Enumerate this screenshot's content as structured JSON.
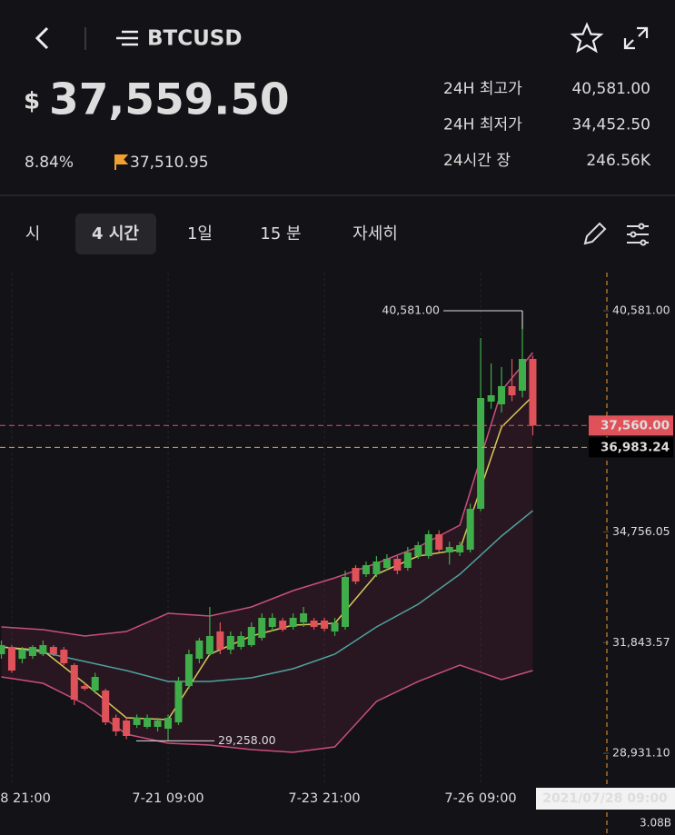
{
  "header": {
    "title": "BTCUSD",
    "price_symbol": "$",
    "price": "37,559.50",
    "change": "8.84%",
    "mark_price": "37,510.95"
  },
  "stats": [
    {
      "label": "24H 최고가",
      "value": "40,581.00"
    },
    {
      "label": "24H 최저가",
      "value": "34,452.50"
    },
    {
      "label": "24시간 장",
      "value": "246.56K"
    }
  ],
  "tabs": [
    "시",
    "4 시간",
    "1일",
    "15 분",
    "자세히"
  ],
  "active_tab": 1,
  "chart": {
    "type": "candlestick",
    "ylim": [
      28190,
      41586
    ],
    "yticks": [
      {
        "value": 40581,
        "label": "40,581.00"
      },
      {
        "value": 34756.05,
        "label": "34,756.05"
      },
      {
        "value": 31843.57,
        "label": "31,843.57"
      },
      {
        "value": 28931.1,
        "label": "28,931.10"
      }
    ],
    "x_labels": [
      "8 21:00",
      "7-21 09:00",
      "7-23 21:00",
      "7-26 09:00"
    ],
    "up_color": "#3fae4a",
    "down_color": "#e0525a",
    "candles": {
      "open": [
        31539,
        31730,
        31419,
        31491,
        31539,
        31730,
        31659,
        31252,
        30701,
        30582,
        30582,
        29864,
        29792,
        29673,
        29625,
        29625,
        29577,
        29744,
        30701,
        31419,
        31539,
        32137,
        31659,
        31731,
        31778,
        31969,
        32257,
        32424,
        32257,
        32376,
        32424,
        32424,
        32137,
        32257,
        33811,
        33644,
        33644,
        33811,
        34051,
        33811,
        34122,
        34122,
        34697,
        34218,
        34218,
        34290,
        35366,
        38189,
        38117,
        38596,
        38476,
        39313
      ],
      "high": [
        31898,
        31778,
        31730,
        31778,
        31898,
        31778,
        31730,
        31300,
        30773,
        31050,
        30630,
        29950,
        29864,
        29950,
        29950,
        29864,
        29950,
        30941,
        31659,
        31969,
        32783,
        32376,
        32137,
        32137,
        32376,
        32615,
        32615,
        32496,
        32615,
        32783,
        32496,
        32496,
        32496,
        33739,
        33883,
        33979,
        34122,
        34170,
        34122,
        34362,
        34500,
        34800,
        34800,
        34500,
        34500,
        35500,
        39863,
        39194,
        39100,
        39313,
        40581,
        39400
      ],
      "low": [
        31419,
        31050,
        31300,
        31419,
        31491,
        31491,
        31252,
        30200,
        30582,
        30500,
        29673,
        29386,
        29300,
        29600,
        29577,
        29505,
        29258,
        29673,
        30630,
        31300,
        31491,
        31539,
        31539,
        31659,
        31730,
        31898,
        32137,
        32137,
        32185,
        32257,
        32185,
        32137,
        32017,
        32185,
        33380,
        33572,
        33572,
        33739,
        33644,
        33739,
        34051,
        34051,
        34218,
        33900,
        34122,
        34218,
        35300,
        38000,
        37900,
        38200,
        38300,
        37300
      ],
      "close": [
        31778,
        31108,
        31659,
        31730,
        31778,
        31539,
        31300,
        30342,
        30630,
        30941,
        29744,
        29505,
        29386,
        29864,
        29864,
        29792,
        29864,
        30821,
        31539,
        31898,
        32017,
        31659,
        32017,
        32017,
        32257,
        32496,
        32496,
        32185,
        32496,
        32615,
        32257,
        32209,
        32376,
        33572,
        33452,
        33883,
        33979,
        34051,
        33739,
        34218,
        34410,
        34697,
        34290,
        34362,
        34410,
        35366,
        38285,
        38356,
        38596,
        38356,
        39313,
        37560
      ]
    },
    "indicators": {
      "x": [
        0,
        4,
        8,
        12,
        16,
        20,
        24,
        28,
        32,
        36,
        40,
        44,
        48,
        51
      ],
      "series": [
        {
          "color": "#c94f7c",
          "values": [
            32257,
            32185,
            32017,
            32137,
            32615,
            32544,
            32783,
            33213,
            33548,
            33931,
            34362,
            34936,
            38476,
            39481
          ]
        },
        {
          "color": "#c94f7c",
          "values": [
            30941,
            30773,
            30223,
            29434,
            29195,
            29147,
            29028,
            28956,
            29099,
            30295,
            30821,
            31252,
            30869,
            31108
          ]
        },
        {
          "color": "#4fa3a0",
          "values": [
            31730,
            31587,
            31348,
            31108,
            30821,
            30821,
            30917,
            31156,
            31539,
            32257,
            32855,
            33644,
            34649,
            35318
          ]
        },
        {
          "color": "#d9c85a",
          "values": [
            31730,
            31635,
            30773,
            29864,
            29817,
            31539,
            32017,
            32305,
            32352,
            33644,
            34122,
            34290,
            37519,
            38333
          ]
        }
      ]
    },
    "high_label": {
      "value": 40581,
      "label": "40,581.00",
      "index": 50
    },
    "low_label": {
      "value": 29258,
      "label": "29,258.00",
      "index": 16
    },
    "price_lines": [
      {
        "value": 37560,
        "label": "37,560.00",
        "color": "#e0525a",
        "label_bg": "#e0525a"
      },
      {
        "value": 36983.24,
        "label": "36,983.24",
        "color": "#f0a030",
        "label_bg": "#000000"
      }
    ],
    "crosshair_label": "2021/07/28 09:00",
    "volume_label": "3.08B"
  }
}
